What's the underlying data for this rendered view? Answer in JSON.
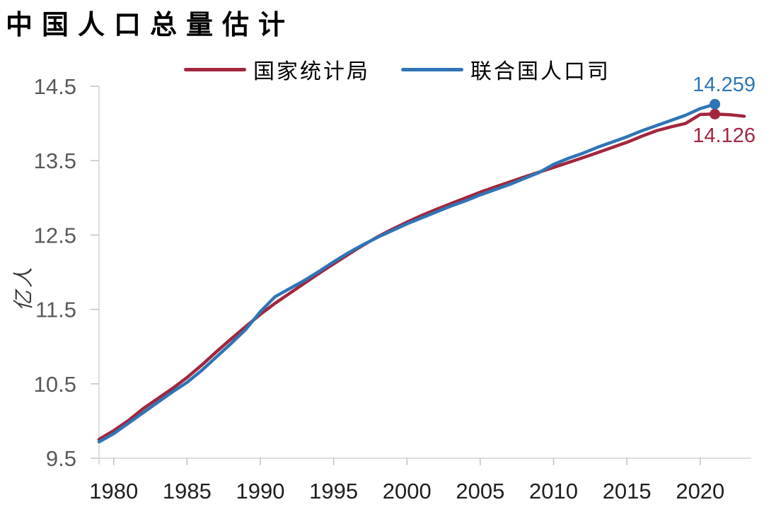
{
  "title": "中国人口总量估计",
  "y_axis": {
    "unit_label": "亿人"
  },
  "colors": {
    "nbs_red": "#A2263E",
    "un_blue": "#2E75B6",
    "axis_line": "#D2D2D2",
    "tick_mark": "#C2C2C2",
    "y_tick_text": "#595959",
    "x_tick_text": "#1f1f1f"
  },
  "chart_data": {
    "type": "line",
    "title": "中国人口总量估计",
    "ylabel": "亿人",
    "ylim": [
      9.5,
      14.5
    ],
    "y_ticks": [
      9.5,
      10.5,
      11.5,
      12.5,
      13.5,
      14.5
    ],
    "x_ticks": [
      1980,
      1985,
      1990,
      1995,
      2000,
      2005,
      2010,
      2015,
      2020
    ],
    "grid": false,
    "legend_position": "top",
    "series": [
      {
        "name": "国家统计局",
        "color": "#A2263E",
        "start_year": 1979,
        "values": [
          9.754,
          9.871,
          10.007,
          10.165,
          10.301,
          10.436,
          10.585,
          10.751,
          10.93,
          11.103,
          11.27,
          11.433,
          11.582,
          11.717,
          11.852,
          11.985,
          12.112,
          12.239,
          12.363,
          12.476,
          12.579,
          12.674,
          12.763,
          12.845,
          12.923,
          12.999,
          13.076,
          13.145,
          13.213,
          13.28,
          13.345,
          13.409,
          13.474,
          13.54,
          13.607,
          13.678,
          13.746,
          13.827,
          13.901,
          13.954,
          14.0,
          14.121,
          14.126,
          14.118,
          14.097
        ],
        "marker": {
          "year": 2021,
          "value": 14.126
        },
        "end_label": "14.126"
      },
      {
        "name": "联合国人口司",
        "color": "#2E75B6",
        "start_year": 1979,
        "values": [
          9.72,
          9.83,
          9.97,
          10.11,
          10.25,
          10.39,
          10.52,
          10.68,
          10.86,
          11.04,
          11.23,
          11.47,
          11.67,
          11.78,
          11.89,
          12.01,
          12.14,
          12.26,
          12.37,
          12.47,
          12.56,
          12.65,
          12.73,
          12.81,
          12.89,
          12.96,
          13.04,
          13.11,
          13.18,
          13.26,
          13.34,
          13.45,
          13.53,
          13.6,
          13.68,
          13.75,
          13.82,
          13.9,
          13.97,
          14.04,
          14.11,
          14.2,
          14.259
        ],
        "marker": {
          "year": 2021,
          "value": 14.259
        },
        "end_label": "14.259"
      }
    ]
  }
}
